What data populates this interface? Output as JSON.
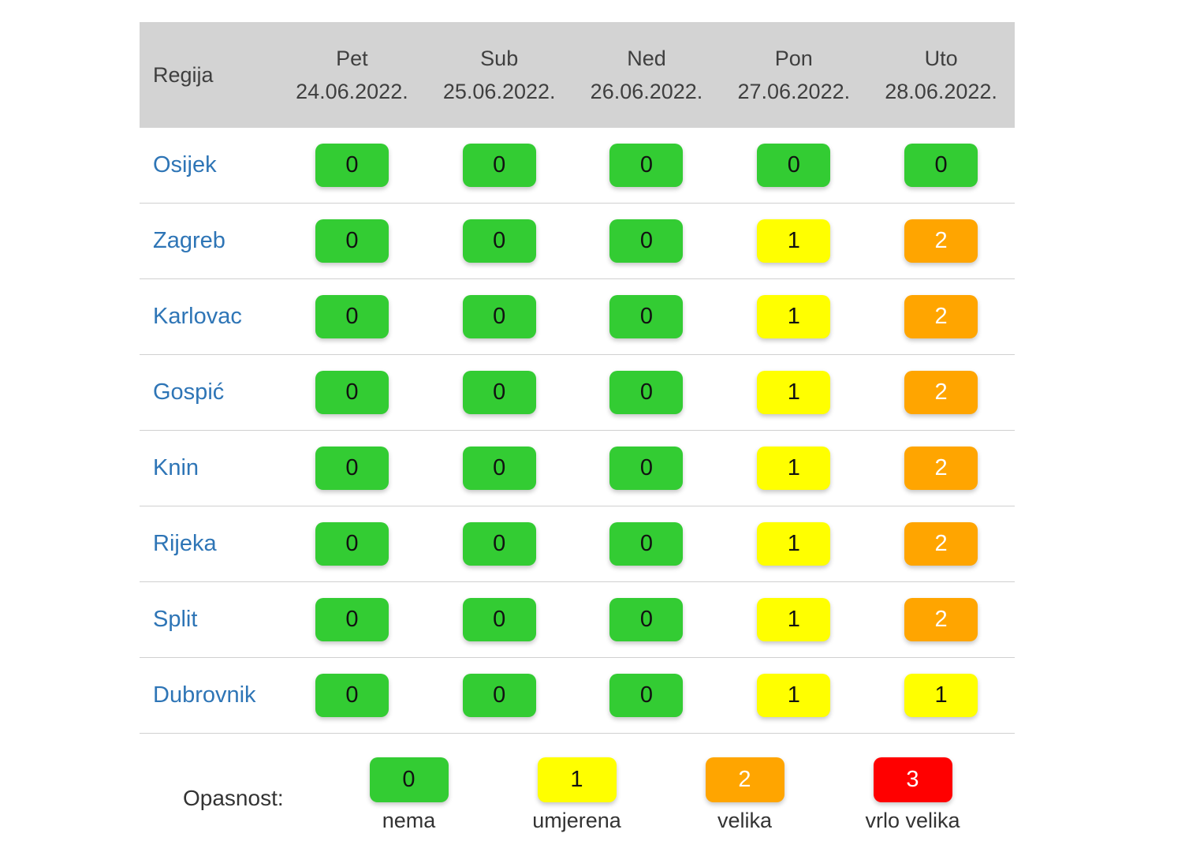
{
  "chart_data": {
    "type": "heatmap",
    "region_column_header": "Regija",
    "columns": [
      {
        "day": "Pet",
        "date": "24.06.2022."
      },
      {
        "day": "Sub",
        "date": "25.06.2022."
      },
      {
        "day": "Ned",
        "date": "26.06.2022."
      },
      {
        "day": "Pon",
        "date": "27.06.2022."
      },
      {
        "day": "Uto",
        "date": "28.06.2022."
      }
    ],
    "rows": [
      {
        "region": "Osijek",
        "values": [
          0,
          0,
          0,
          0,
          0
        ]
      },
      {
        "region": "Zagreb",
        "values": [
          0,
          0,
          0,
          1,
          2
        ]
      },
      {
        "region": "Karlovac",
        "values": [
          0,
          0,
          0,
          1,
          2
        ]
      },
      {
        "region": "Gospić",
        "values": [
          0,
          0,
          0,
          1,
          2
        ]
      },
      {
        "region": "Knin",
        "values": [
          0,
          0,
          0,
          1,
          2
        ]
      },
      {
        "region": "Rijeka",
        "values": [
          0,
          0,
          0,
          1,
          2
        ]
      },
      {
        "region": "Split",
        "values": [
          0,
          0,
          0,
          1,
          2
        ]
      },
      {
        "region": "Dubrovnik",
        "values": [
          0,
          0,
          0,
          1,
          1
        ]
      }
    ],
    "value_range": [
      0,
      3
    ],
    "legend": {
      "title": "Opasnost:",
      "items": [
        {
          "value": 0,
          "label": "nema"
        },
        {
          "value": 1,
          "label": "umjerena"
        },
        {
          "value": 2,
          "label": "velika"
        },
        {
          "value": 3,
          "label": "vrlo velika"
        }
      ]
    }
  },
  "colors": {
    "level0": "#33cc33",
    "level1": "#ffff00",
    "level2": "#ffa500",
    "level3": "#ff0000",
    "header_bg": "#d3d3d3",
    "header_text": "#3f3f3f",
    "region_text": "#2e75b6",
    "legend_text": "#333333",
    "row_divider": "#d0d0d0",
    "badge_text_dark": "#111111",
    "badge_text_light": "#ffffff"
  }
}
